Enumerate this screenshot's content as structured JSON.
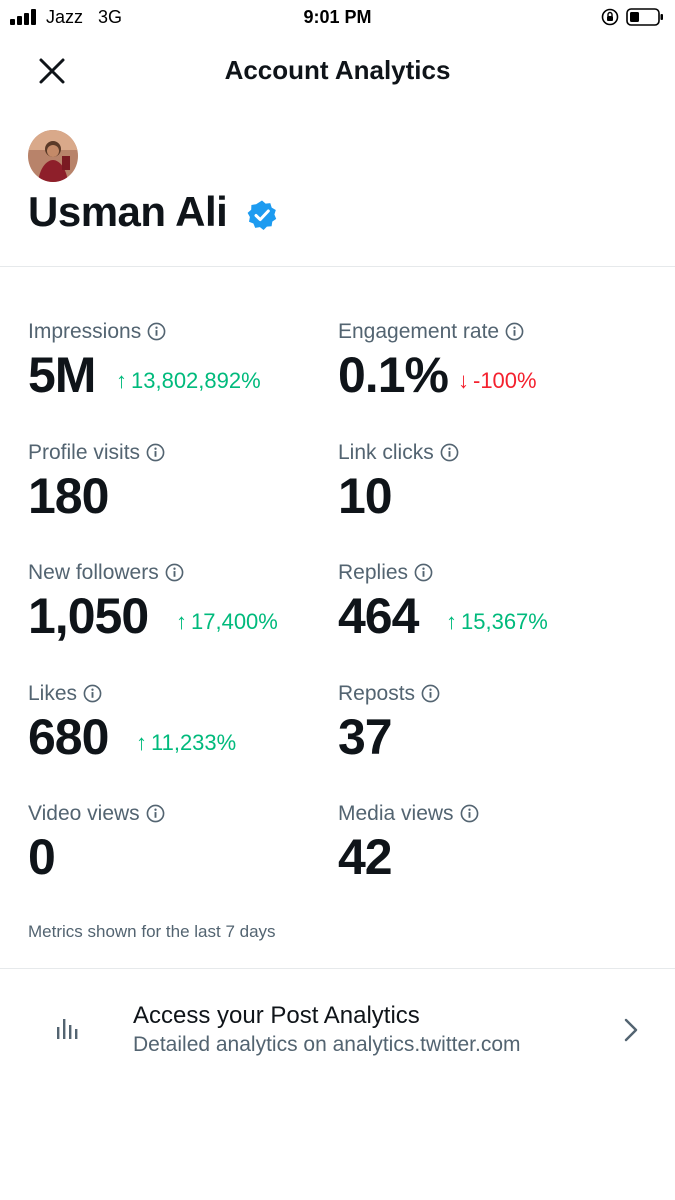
{
  "status_bar": {
    "carrier": "Jazz",
    "network": "3G",
    "time": "9:01 PM"
  },
  "header": {
    "title": "Account Analytics"
  },
  "profile": {
    "name": "Usman Ali"
  },
  "metrics": [
    {
      "label": "Impressions",
      "value": "5M",
      "change": "13,802,892%",
      "direction": "up"
    },
    {
      "label": "Engagement rate",
      "value": "0.1%",
      "change": "-100%",
      "direction": "down"
    },
    {
      "label": "Profile visits",
      "value": "180",
      "change": null,
      "direction": null
    },
    {
      "label": "Link clicks",
      "value": "10",
      "change": null,
      "direction": null
    },
    {
      "label": "New followers",
      "value": "1,050",
      "change": "17,400%",
      "direction": "up"
    },
    {
      "label": "Replies",
      "value": "464",
      "change": "15,367%",
      "direction": "up"
    },
    {
      "label": "Likes",
      "value": "680",
      "change": "11,233%",
      "direction": "up"
    },
    {
      "label": "Reposts",
      "value": "37",
      "change": null,
      "direction": null
    },
    {
      "label": "Video views",
      "value": "0",
      "change": null,
      "direction": null
    },
    {
      "label": "Media views",
      "value": "42",
      "change": null,
      "direction": null
    }
  ],
  "note": "Metrics shown for the last 7 days",
  "post_analytics": {
    "title": "Access your Post Analytics",
    "subtitle": "Detailed analytics on analytics.twitter.com"
  },
  "colors": {
    "up": "#00ba7c",
    "down": "#f4212e",
    "verified": "#1d9bf0",
    "secondary_text": "#536471"
  }
}
